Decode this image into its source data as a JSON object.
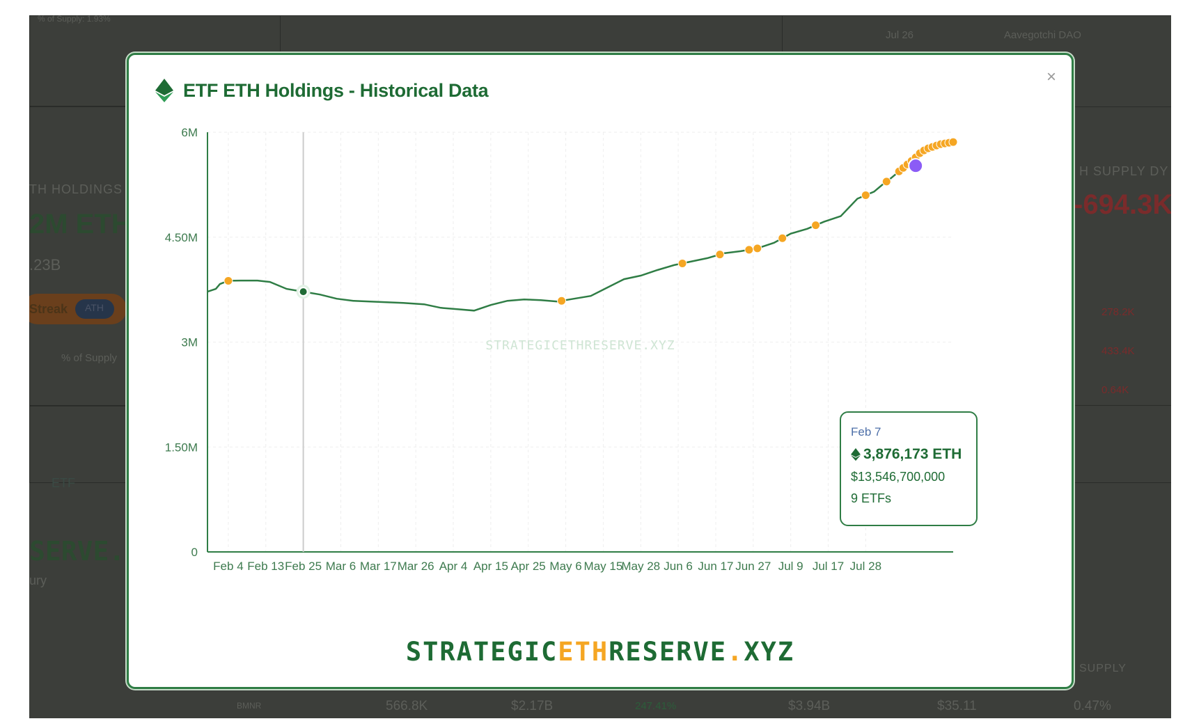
{
  "background": {
    "supply_note": "% of Supply: 1.93%",
    "recent_date": "Jul 26",
    "recent_name": "Aavegotchi DAO",
    "holdings_label": "TH HOLDINGS",
    "holdings_value": "2M ETH",
    "holdings_usd": ".23B",
    "streak_label": "Streak",
    "ath_badge": "ATH",
    "supply_label": "% of Supply",
    "etf_tab": "ETF",
    "brand_partial": "SERVE.X",
    "brand_sub": "ury",
    "supply_dyn_label": "H SUPPLY DY",
    "supply_dyn_value": "-694.3K",
    "changes": [
      "278.2K",
      "433.4K",
      "0.64K"
    ],
    "supply_col": "SUPPLY",
    "row": {
      "ticker": "BMNR",
      "eth": "566.8K",
      "usd": "$2.17B",
      "pct": "247.41%",
      "mcap": "$3.94B",
      "price": "$35.11",
      "supply": "0.47%"
    }
  },
  "modal": {
    "title": "ETF ETH Holdings - Historical Data",
    "close_glyph": "×",
    "watermark": "STRATEGICETHRESERVE.XYZ",
    "brand": {
      "part1": "STRATEGIC",
      "part2": "ETH",
      "part3": "RESERVE",
      "part4": ".",
      "part5": "XYZ"
    },
    "tooltip": {
      "date": "Feb 7",
      "eth": "3,876,173 ETH",
      "usd": "$13,546,700,000",
      "etfs": "9 ETFs"
    }
  },
  "colors": {
    "line": "#2f7d45",
    "marker": "#f5a623",
    "highlight": "#8b5cf6",
    "hover": "#1e6b34"
  },
  "chart_data": {
    "type": "line",
    "title": "ETF ETH Holdings - Historical Data",
    "y_ticks": [
      "0",
      "1.50M",
      "3M",
      "4.50M",
      "6M"
    ],
    "ylim": [
      0,
      6000000
    ],
    "x_ticks": [
      "Feb 4",
      "Feb 13",
      "Feb 25",
      "Mar 6",
      "Mar 17",
      "Mar 26",
      "Apr 4",
      "Apr 15",
      "Apr 25",
      "May 6",
      "May 15",
      "May 28",
      "Jun 6",
      "Jun 17",
      "Jun 27",
      "Jul 9",
      "Jul 17",
      "Jul 28"
    ],
    "series": [
      {
        "x": [
          0,
          2,
          3,
          5,
          8,
          12,
          15,
          19,
          23,
          27,
          31,
          35,
          39,
          43,
          47,
          52,
          56,
          60,
          64,
          68,
          72,
          76,
          80,
          84,
          85,
          88,
          92,
          96,
          100,
          104,
          108,
          112,
          116,
          120,
          124,
          128,
          132,
          136,
          140,
          144,
          148,
          152,
          156,
          160,
          162,
          164,
          166,
          168,
          169,
          170,
          171,
          172,
          173,
          174,
          175,
          176,
          177,
          178,
          179
        ],
        "y": [
          3720000,
          3760000,
          3830000,
          3876173,
          3880000,
          3880000,
          3860000,
          3760000,
          3720000,
          3680000,
          3620000,
          3590000,
          3580000,
          3570000,
          3560000,
          3540000,
          3490000,
          3470000,
          3450000,
          3530000,
          3590000,
          3610000,
          3600000,
          3580000,
          3590000,
          3620000,
          3660000,
          3780000,
          3900000,
          3950000,
          4030000,
          4100000,
          4150000,
          4200000,
          4270000,
          4300000,
          4340000,
          4420000,
          4550000,
          4620000,
          4720000,
          4800000,
          5050000,
          5150000,
          5250000,
          5340000,
          5440000,
          5540000,
          5590000,
          5640000,
          5700000,
          5740000,
          5770000,
          5790000,
          5810000,
          5830000,
          5840000,
          5850000,
          5860000
        ]
      }
    ],
    "x_tick_index": [
      5,
      14,
      23,
      32,
      41,
      50,
      59,
      68,
      77,
      86,
      95,
      104,
      113,
      122,
      131,
      140,
      149,
      158
    ],
    "markers_index": [
      5,
      85,
      114,
      123,
      130,
      132,
      138,
      146,
      158,
      163,
      166,
      167,
      168,
      169,
      170,
      171,
      172,
      173,
      174,
      175,
      176,
      177,
      178,
      179
    ],
    "hover_index": 8,
    "highlight_index": 170
  }
}
